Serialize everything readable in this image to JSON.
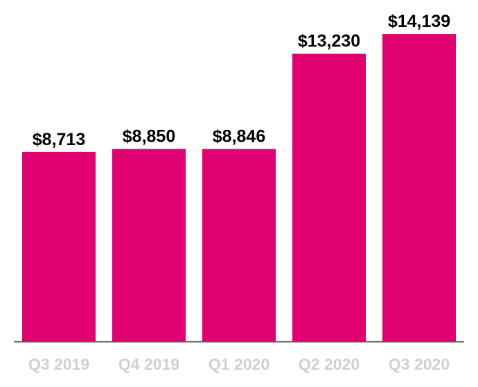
{
  "chart_data": {
    "type": "bar",
    "categories": [
      "Q3 2019",
      "Q4 2019",
      "Q1 2020",
      "Q2 2020",
      "Q3 2020"
    ],
    "values": [
      8713,
      8850,
      8846,
      13230,
      14139
    ],
    "data_labels": [
      "$8,713",
      "$8,850",
      "$8,846",
      "$13,230",
      "$14,139"
    ],
    "title": "",
    "xlabel": "",
    "ylabel": "",
    "ylim": [
      0,
      15000
    ],
    "grid": false,
    "legend": "none",
    "colors": {
      "bar": "#e0006f",
      "axis": "#595959",
      "tick_label": "#d0d0d0",
      "data_label": "#000000"
    }
  }
}
